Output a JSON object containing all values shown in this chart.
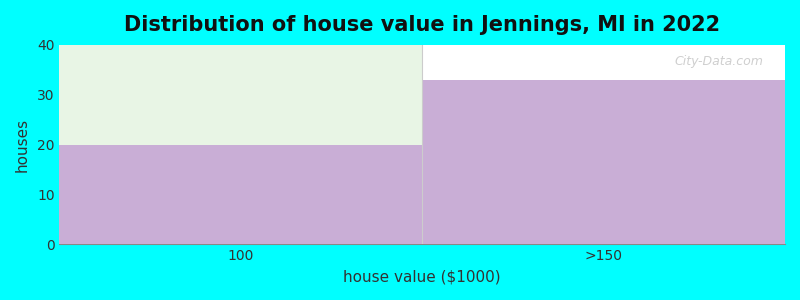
{
  "title": "Distribution of house value in Jennings, MI in 2022",
  "xlabel": "house value ($1000)",
  "ylabel": "houses",
  "categories": [
    "100",
    ">150"
  ],
  "values": [
    20,
    33
  ],
  "bar_color": "#c9aed6",
  "bg_color": "#00ffff",
  "plot_bg_color": "#ffffff",
  "top_fill_color": "#e8f5e5",
  "ylim": [
    0,
    40
  ],
  "yticks": [
    0,
    10,
    20,
    30,
    40
  ],
  "watermark": "City-Data.com",
  "title_fontsize": 15,
  "axis_label_fontsize": 11,
  "bin_edges": [
    0,
    1,
    2
  ]
}
